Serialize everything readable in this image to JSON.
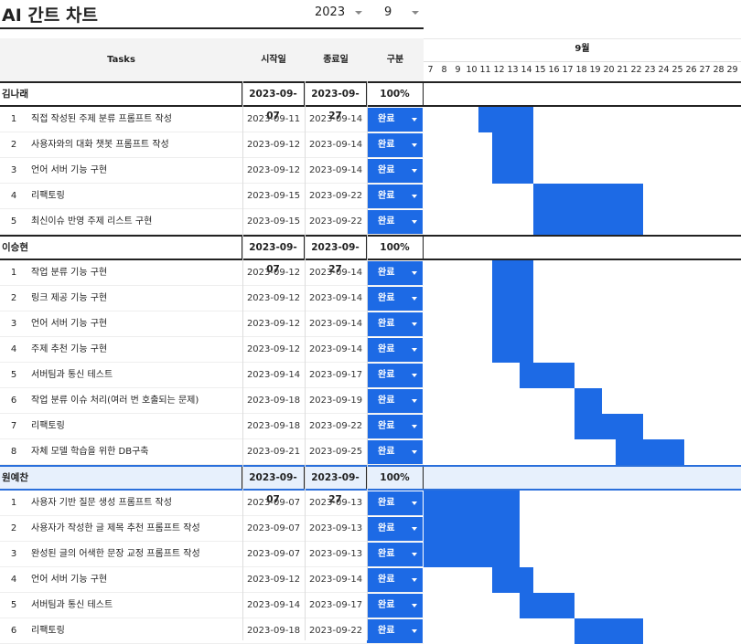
{
  "title": "AI 간트 차트",
  "year": "2023",
  "month_select": "9",
  "headers": {
    "tasks": "Tasks",
    "start": "시작일",
    "end": "종료일",
    "category": "구분",
    "month": "9월"
  },
  "days": [
    "7",
    "8",
    "9",
    "10",
    "11",
    "12",
    "13",
    "14",
    "15",
    "16",
    "17",
    "18",
    "19",
    "20",
    "21",
    "22",
    "23",
    "24",
    "25",
    "26",
    "27",
    "28",
    "29"
  ],
  "colors": {
    "bar": "#1d6ae5"
  },
  "groups": [
    {
      "name": "김나래",
      "start": "2023-09-07",
      "end": "2023-09-27",
      "progress": "100%",
      "highlight": false,
      "tasks": [
        {
          "num": "1",
          "name": "직접 작성된 주제 분류 프롬프트 작성",
          "start": "2023-09-11",
          "end": "2023-09-14",
          "status": "완료",
          "s": 11,
          "e": 14
        },
        {
          "num": "2",
          "name": "사용자와의 대화 챗봇 프롬프트 작성",
          "start": "2023-09-12",
          "end": "2023-09-14",
          "status": "완료",
          "s": 12,
          "e": 14
        },
        {
          "num": "3",
          "name": "언어 서버 기능 구현",
          "start": "2023-09-12",
          "end": "2023-09-14",
          "status": "완료",
          "s": 12,
          "e": 14
        },
        {
          "num": "4",
          "name": "리팩토링",
          "start": "2023-09-15",
          "end": "2023-09-22",
          "status": "완료",
          "s": 15,
          "e": 22
        },
        {
          "num": "5",
          "name": "최신이슈 반영 주제 리스트 구현",
          "start": "2023-09-15",
          "end": "2023-09-22",
          "status": "완료",
          "s": 15,
          "e": 22
        }
      ]
    },
    {
      "name": "이승현",
      "start": "2023-09-07",
      "end": "2023-09-27",
      "progress": "100%",
      "highlight": false,
      "tasks": [
        {
          "num": "1",
          "name": "작업 분류 기능 구현",
          "start": "2023-09-12",
          "end": "2023-09-14",
          "status": "완료",
          "s": 12,
          "e": 14
        },
        {
          "num": "2",
          "name": "링크 제공 기능 구현",
          "start": "2023-09-12",
          "end": "2023-09-14",
          "status": "완료",
          "s": 12,
          "e": 14
        },
        {
          "num": "3",
          "name": "언어 서버 기능 구현",
          "start": "2023-09-12",
          "end": "2023-09-14",
          "status": "완료",
          "s": 12,
          "e": 14
        },
        {
          "num": "4",
          "name": "주제 추천 기능 구현",
          "start": "2023-09-12",
          "end": "2023-09-14",
          "status": "완료",
          "s": 12,
          "e": 14
        },
        {
          "num": "5",
          "name": "서버팀과 통신 테스트",
          "start": "2023-09-14",
          "end": "2023-09-17",
          "status": "완료",
          "s": 14,
          "e": 17
        },
        {
          "num": "6",
          "name": "작업 분류 이슈 처리(여러 번 호출되는 문제)",
          "start": "2023-09-18",
          "end": "2023-09-19",
          "status": "완료",
          "s": 18,
          "e": 19
        },
        {
          "num": "7",
          "name": "리팩토링",
          "start": "2023-09-18",
          "end": "2023-09-22",
          "status": "완료",
          "s": 18,
          "e": 22
        },
        {
          "num": "8",
          "name": "자체 모델 학습을 위한 DB구축",
          "start": "2023-09-21",
          "end": "2023-09-25",
          "status": "완료",
          "s": 21,
          "e": 25
        }
      ]
    },
    {
      "name": "원예찬",
      "start": "2023-09-07",
      "end": "2023-09-27",
      "progress": "100%",
      "highlight": true,
      "tasks": [
        {
          "num": "1",
          "name": "사용자 기반 질문 생성 프롬프트 작성",
          "start": "2023-09-07",
          "end": "2023-09-13",
          "status": "완료",
          "s": 7,
          "e": 13
        },
        {
          "num": "2",
          "name": "사용자가 작성한 글 제목 추천 프롬프트 작성",
          "start": "2023-09-07",
          "end": "2023-09-13",
          "status": "완료",
          "s": 7,
          "e": 13
        },
        {
          "num": "3",
          "name": "완성된 글의 어색한 문장 교정 프롬프트 작성",
          "start": "2023-09-07",
          "end": "2023-09-13",
          "status": "완료",
          "s": 7,
          "e": 13
        },
        {
          "num": "4",
          "name": "언어 서버 기능 구현",
          "start": "2023-09-12",
          "end": "2023-09-14",
          "status": "완료",
          "s": 12,
          "e": 14
        },
        {
          "num": "5",
          "name": "서버팀과 통신 테스트",
          "start": "2023-09-14",
          "end": "2023-09-17",
          "status": "완료",
          "s": 14,
          "e": 17
        },
        {
          "num": "6",
          "name": "리팩토링",
          "start": "2023-09-18",
          "end": "2023-09-22",
          "status": "완료",
          "s": 18,
          "e": 22
        }
      ]
    }
  ]
}
